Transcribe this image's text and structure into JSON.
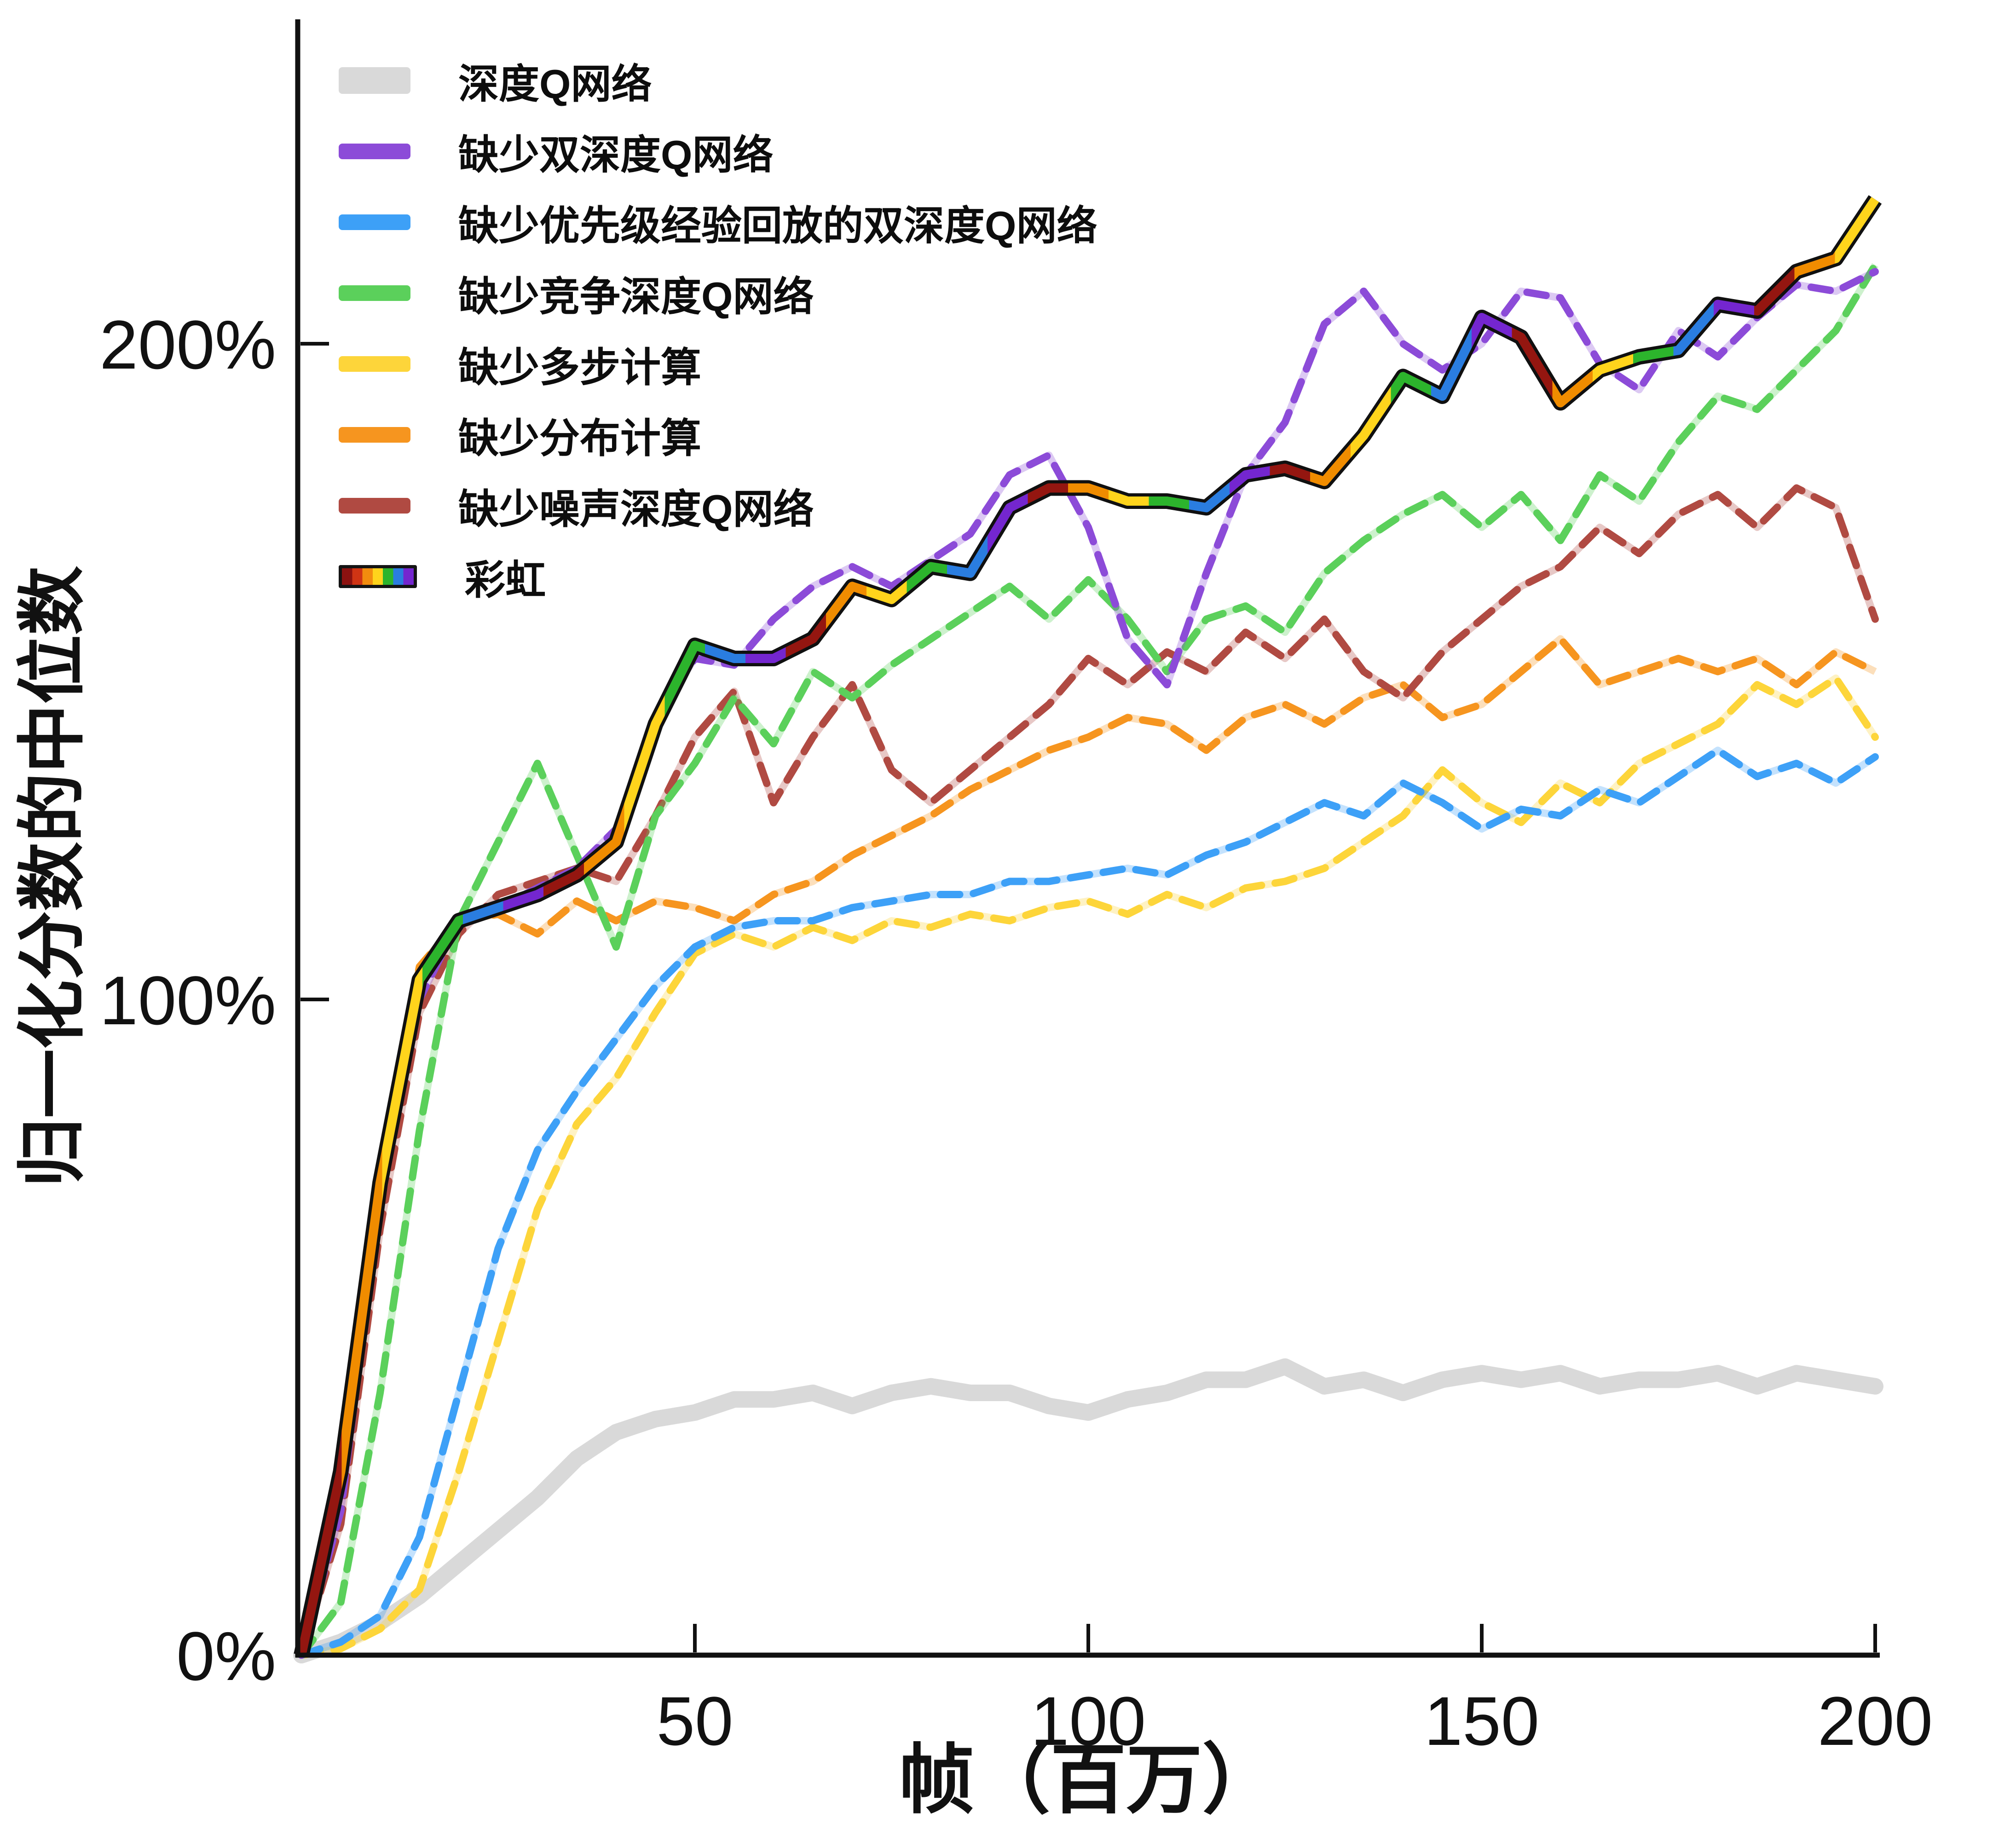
{
  "figure": {
    "background": "#ffffff"
  },
  "axes": {
    "xlabel": "帧（百万）",
    "ylabel": "归一化分数的中位数",
    "xlim": [
      0,
      200
    ],
    "ylim": [
      0,
      248
    ],
    "x_ticks": [
      {
        "value": 50,
        "label": "50"
      },
      {
        "value": 100,
        "label": "100"
      },
      {
        "value": 150,
        "label": "150"
      },
      {
        "value": 200,
        "label": "200"
      }
    ],
    "y_ticks": [
      {
        "value": 0,
        "label": "0%"
      },
      {
        "value": 100,
        "label": "100%"
      },
      {
        "value": 200,
        "label": "200%"
      }
    ]
  },
  "chart_data": {
    "type": "line",
    "title": "",
    "xlabel": "帧（百万）",
    "ylabel": "归一化分数的中位数",
    "xlim": [
      0,
      200
    ],
    "ylim": [
      0,
      248
    ],
    "grid": false,
    "legend_position": "upper-left",
    "x": [
      0,
      5,
      10,
      15,
      20,
      25,
      30,
      35,
      40,
      45,
      50,
      55,
      60,
      65,
      70,
      75,
      80,
      85,
      90,
      95,
      100,
      105,
      110,
      115,
      120,
      125,
      130,
      135,
      140,
      145,
      150,
      155,
      160,
      165,
      170,
      175,
      180,
      185,
      190,
      195,
      200
    ],
    "rainbow_cycle": [
      "#941610",
      "#f08c00",
      "#ffd41c",
      "#2cb42c",
      "#2a7de0",
      "#7426cf"
    ],
    "rainbow_swatch": [
      "#8c1210",
      "#d03414",
      "#f28c0e",
      "#ffd41c",
      "#2cb42c",
      "#2a7de0",
      "#7426cf"
    ],
    "series": [
      {
        "name": "dqn",
        "label": "深度Q网络",
        "color": "#d9d9d9",
        "style": "solid-thick",
        "z": 0,
        "values": [
          0,
          2,
          5,
          9,
          14,
          19,
          24,
          30,
          34,
          36,
          37,
          39,
          39,
          40,
          38,
          40,
          41,
          40,
          40,
          38,
          37,
          39,
          40,
          42,
          42,
          44,
          41,
          42,
          40,
          42,
          43,
          42,
          43,
          41,
          42,
          42,
          43,
          41,
          43,
          42,
          41
        ]
      },
      {
        "name": "no_double",
        "label": "缺少双深度Q网络",
        "color": "#8c4bd8",
        "style": "dashed",
        "z": 6,
        "values": [
          0,
          22,
          70,
          100,
          112,
          114,
          117,
          120,
          126,
          143,
          152,
          151,
          158,
          163,
          166,
          163,
          167,
          171,
          180,
          183,
          172,
          155,
          148,
          165,
          180,
          188,
          203,
          208,
          200,
          196,
          200,
          208,
          207,
          197,
          193,
          202,
          198,
          204,
          209,
          208,
          211
        ]
      },
      {
        "name": "no_priority",
        "label": "缺少优先级经验回放的双深度Q网络",
        "color": "#3da0f7",
        "style": "dashed",
        "z": 3,
        "values": [
          0,
          2,
          6,
          18,
          40,
          62,
          77,
          86,
          94,
          102,
          108,
          111,
          112,
          112,
          114,
          115,
          116,
          116,
          118,
          118,
          119,
          120,
          119,
          122,
          124,
          127,
          130,
          128,
          133,
          130,
          126,
          129,
          128,
          132,
          130,
          134,
          138,
          134,
          136,
          133,
          137
        ]
      },
      {
        "name": "no_dueling",
        "label": "缺少竞争深度Q网络",
        "color": "#5bd05b",
        "style": "dashed",
        "z": 5,
        "values": [
          0,
          8,
          40,
          80,
          112,
          124,
          136,
          122,
          108,
          128,
          136,
          146,
          139,
          150,
          146,
          151,
          155,
          159,
          163,
          158,
          164,
          158,
          150,
          158,
          160,
          156,
          165,
          170,
          174,
          177,
          172,
          177,
          170,
          180,
          176,
          185,
          192,
          190,
          196,
          202,
          212
        ]
      },
      {
        "name": "no_multistep",
        "label": "缺少多步计算",
        "color": "#fdd53a",
        "style": "dashed",
        "z": 1,
        "values": [
          0,
          1,
          4,
          10,
          28,
          48,
          68,
          81,
          88,
          98,
          107,
          110,
          108,
          111,
          109,
          112,
          111,
          113,
          112,
          114,
          115,
          113,
          116,
          114,
          117,
          118,
          120,
          124,
          128,
          135,
          130,
          127,
          133,
          130,
          136,
          139,
          142,
          148,
          145,
          149,
          140
        ]
      },
      {
        "name": "no_distribution",
        "label": "缺少分布计算",
        "color": "#f6951f",
        "style": "dashed",
        "z": 2,
        "values": [
          0,
          25,
          75,
          105,
          112,
          113,
          110,
          115,
          112,
          115,
          114,
          112,
          116,
          118,
          122,
          125,
          128,
          132,
          135,
          138,
          140,
          143,
          142,
          138,
          143,
          145,
          142,
          146,
          148,
          143,
          145,
          150,
          155,
          148,
          150,
          152,
          150,
          152,
          148,
          153,
          150
        ]
      },
      {
        "name": "no_noisy",
        "label": "缺少噪声深度Q网络",
        "color": "#b04a42",
        "style": "dashed",
        "z": 4,
        "values": [
          0,
          20,
          65,
          98,
          110,
          116,
          118,
          120,
          118,
          128,
          140,
          147,
          130,
          140,
          148,
          135,
          130,
          135,
          140,
          145,
          152,
          148,
          153,
          150,
          156,
          152,
          158,
          150,
          146,
          153,
          158,
          163,
          166,
          172,
          168,
          174,
          177,
          172,
          178,
          175,
          158
        ]
      },
      {
        "name": "rainbow",
        "label": "彩虹",
        "color": "rainbow",
        "style": "rainbow",
        "z": 7,
        "values": [
          0,
          28,
          72,
          103,
          112,
          114,
          116,
          119,
          124,
          142,
          154,
          152,
          152,
          155,
          163,
          161,
          166,
          165,
          175,
          178,
          178,
          176,
          176,
          175,
          180,
          181,
          179,
          186,
          195,
          192,
          204,
          201,
          191,
          196,
          198,
          199,
          206,
          205,
          211,
          213,
          222
        ]
      }
    ]
  }
}
